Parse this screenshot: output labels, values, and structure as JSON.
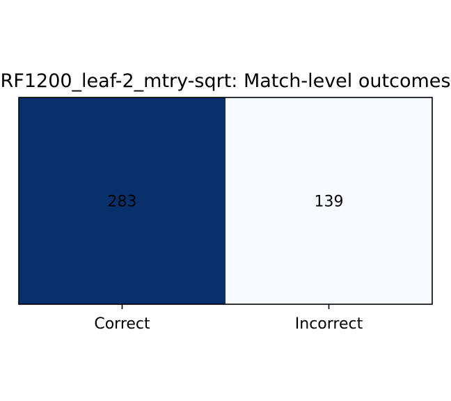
{
  "chart_data": {
    "type": "heatmap",
    "title": "RF1200_leaf-2_mtry-sqrt: Match-level outcomes",
    "categories": [
      "Correct",
      "Incorrect"
    ],
    "values": [
      283,
      139
    ],
    "colormap": {
      "low": "#f7fbff",
      "high": "#08306b"
    },
    "cell_text_colors": {
      "on_dark": "#000000",
      "on_light": "#000000"
    },
    "xlabel": "",
    "ylabel": "",
    "grid": false,
    "legend": "none"
  }
}
